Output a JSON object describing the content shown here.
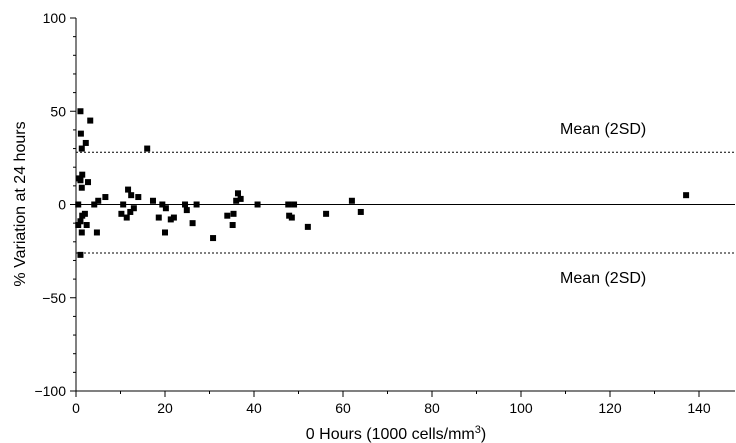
{
  "chart_data": {
    "type": "scatter",
    "title": "",
    "xlabel_main": "0 Hours (1000 cells/mm",
    "xlabel_sup": "3",
    "xlabel_tail": ")",
    "ylabel": "% Variation at 24 hours",
    "xlim": [
      0,
      147
    ],
    "ylim": [
      -100,
      100
    ],
    "xticks": [
      0,
      20,
      40,
      60,
      80,
      100,
      120,
      140
    ],
    "yticks": [
      -100,
      -50,
      0,
      50,
      100
    ],
    "xtick_labels": [
      "0",
      "20",
      "40",
      "60",
      "80",
      "100",
      "120",
      "140"
    ],
    "ytick_labels": [
      "−100",
      "−50",
      "0",
      "50",
      "100"
    ],
    "grid": false,
    "reference_lines": [
      {
        "y": 0,
        "style": "solid"
      },
      {
        "y": 28,
        "style": "dotted",
        "label": "Mean (2SD)"
      },
      {
        "y": -26,
        "style": "dotted",
        "label": "Mean (2SD)"
      }
    ],
    "points": [
      {
        "x": 1.0,
        "y": 50
      },
      {
        "x": 3.2,
        "y": 45
      },
      {
        "x": 1.1,
        "y": 38
      },
      {
        "x": 2.2,
        "y": 33
      },
      {
        "x": 1.3,
        "y": 30
      },
      {
        "x": 16.0,
        "y": 30
      },
      {
        "x": 1.4,
        "y": 16
      },
      {
        "x": 0.6,
        "y": 14
      },
      {
        "x": 1.0,
        "y": 13
      },
      {
        "x": 2.7,
        "y": 12
      },
      {
        "x": 1.3,
        "y": 9
      },
      {
        "x": 11.7,
        "y": 8
      },
      {
        "x": 36.4,
        "y": 6
      },
      {
        "x": 137.1,
        "y": 5
      },
      {
        "x": 12.4,
        "y": 5
      },
      {
        "x": 14.0,
        "y": 4
      },
      {
        "x": 6.6,
        "y": 4
      },
      {
        "x": 37.0,
        "y": 3
      },
      {
        "x": 5.0,
        "y": 2
      },
      {
        "x": 17.3,
        "y": 2
      },
      {
        "x": 36.0,
        "y": 2
      },
      {
        "x": 62.0,
        "y": 2
      },
      {
        "x": 0.5,
        "y": 0
      },
      {
        "x": 4.1,
        "y": 0
      },
      {
        "x": 10.6,
        "y": 0
      },
      {
        "x": 19.4,
        "y": 0
      },
      {
        "x": 24.5,
        "y": 0
      },
      {
        "x": 27.1,
        "y": 0
      },
      {
        "x": 40.8,
        "y": 0
      },
      {
        "x": 47.7,
        "y": 0
      },
      {
        "x": 49.0,
        "y": 0
      },
      {
        "x": 20.2,
        "y": -2
      },
      {
        "x": 13.0,
        "y": -2
      },
      {
        "x": 24.9,
        "y": -3
      },
      {
        "x": 64.0,
        "y": -4
      },
      {
        "x": 12.2,
        "y": -4
      },
      {
        "x": 2.0,
        "y": -5
      },
      {
        "x": 10.2,
        "y": -5
      },
      {
        "x": 35.4,
        "y": -5
      },
      {
        "x": 56.2,
        "y": -5
      },
      {
        "x": 34.0,
        "y": -6
      },
      {
        "x": 47.9,
        "y": -6
      },
      {
        "x": 1.4,
        "y": -6
      },
      {
        "x": 11.4,
        "y": -7
      },
      {
        "x": 18.6,
        "y": -7
      },
      {
        "x": 22.0,
        "y": -7
      },
      {
        "x": 48.5,
        "y": -7
      },
      {
        "x": 21.3,
        "y": -8
      },
      {
        "x": 1.0,
        "y": -9
      },
      {
        "x": 26.2,
        "y": -10
      },
      {
        "x": 0.5,
        "y": -11
      },
      {
        "x": 2.4,
        "y": -11
      },
      {
        "x": 35.2,
        "y": -11
      },
      {
        "x": 52.1,
        "y": -12
      },
      {
        "x": 1.3,
        "y": -15
      },
      {
        "x": 4.7,
        "y": -15
      },
      {
        "x": 20.0,
        "y": -15
      },
      {
        "x": 30.8,
        "y": -18
      },
      {
        "x": 1.0,
        "y": -27
      }
    ]
  }
}
